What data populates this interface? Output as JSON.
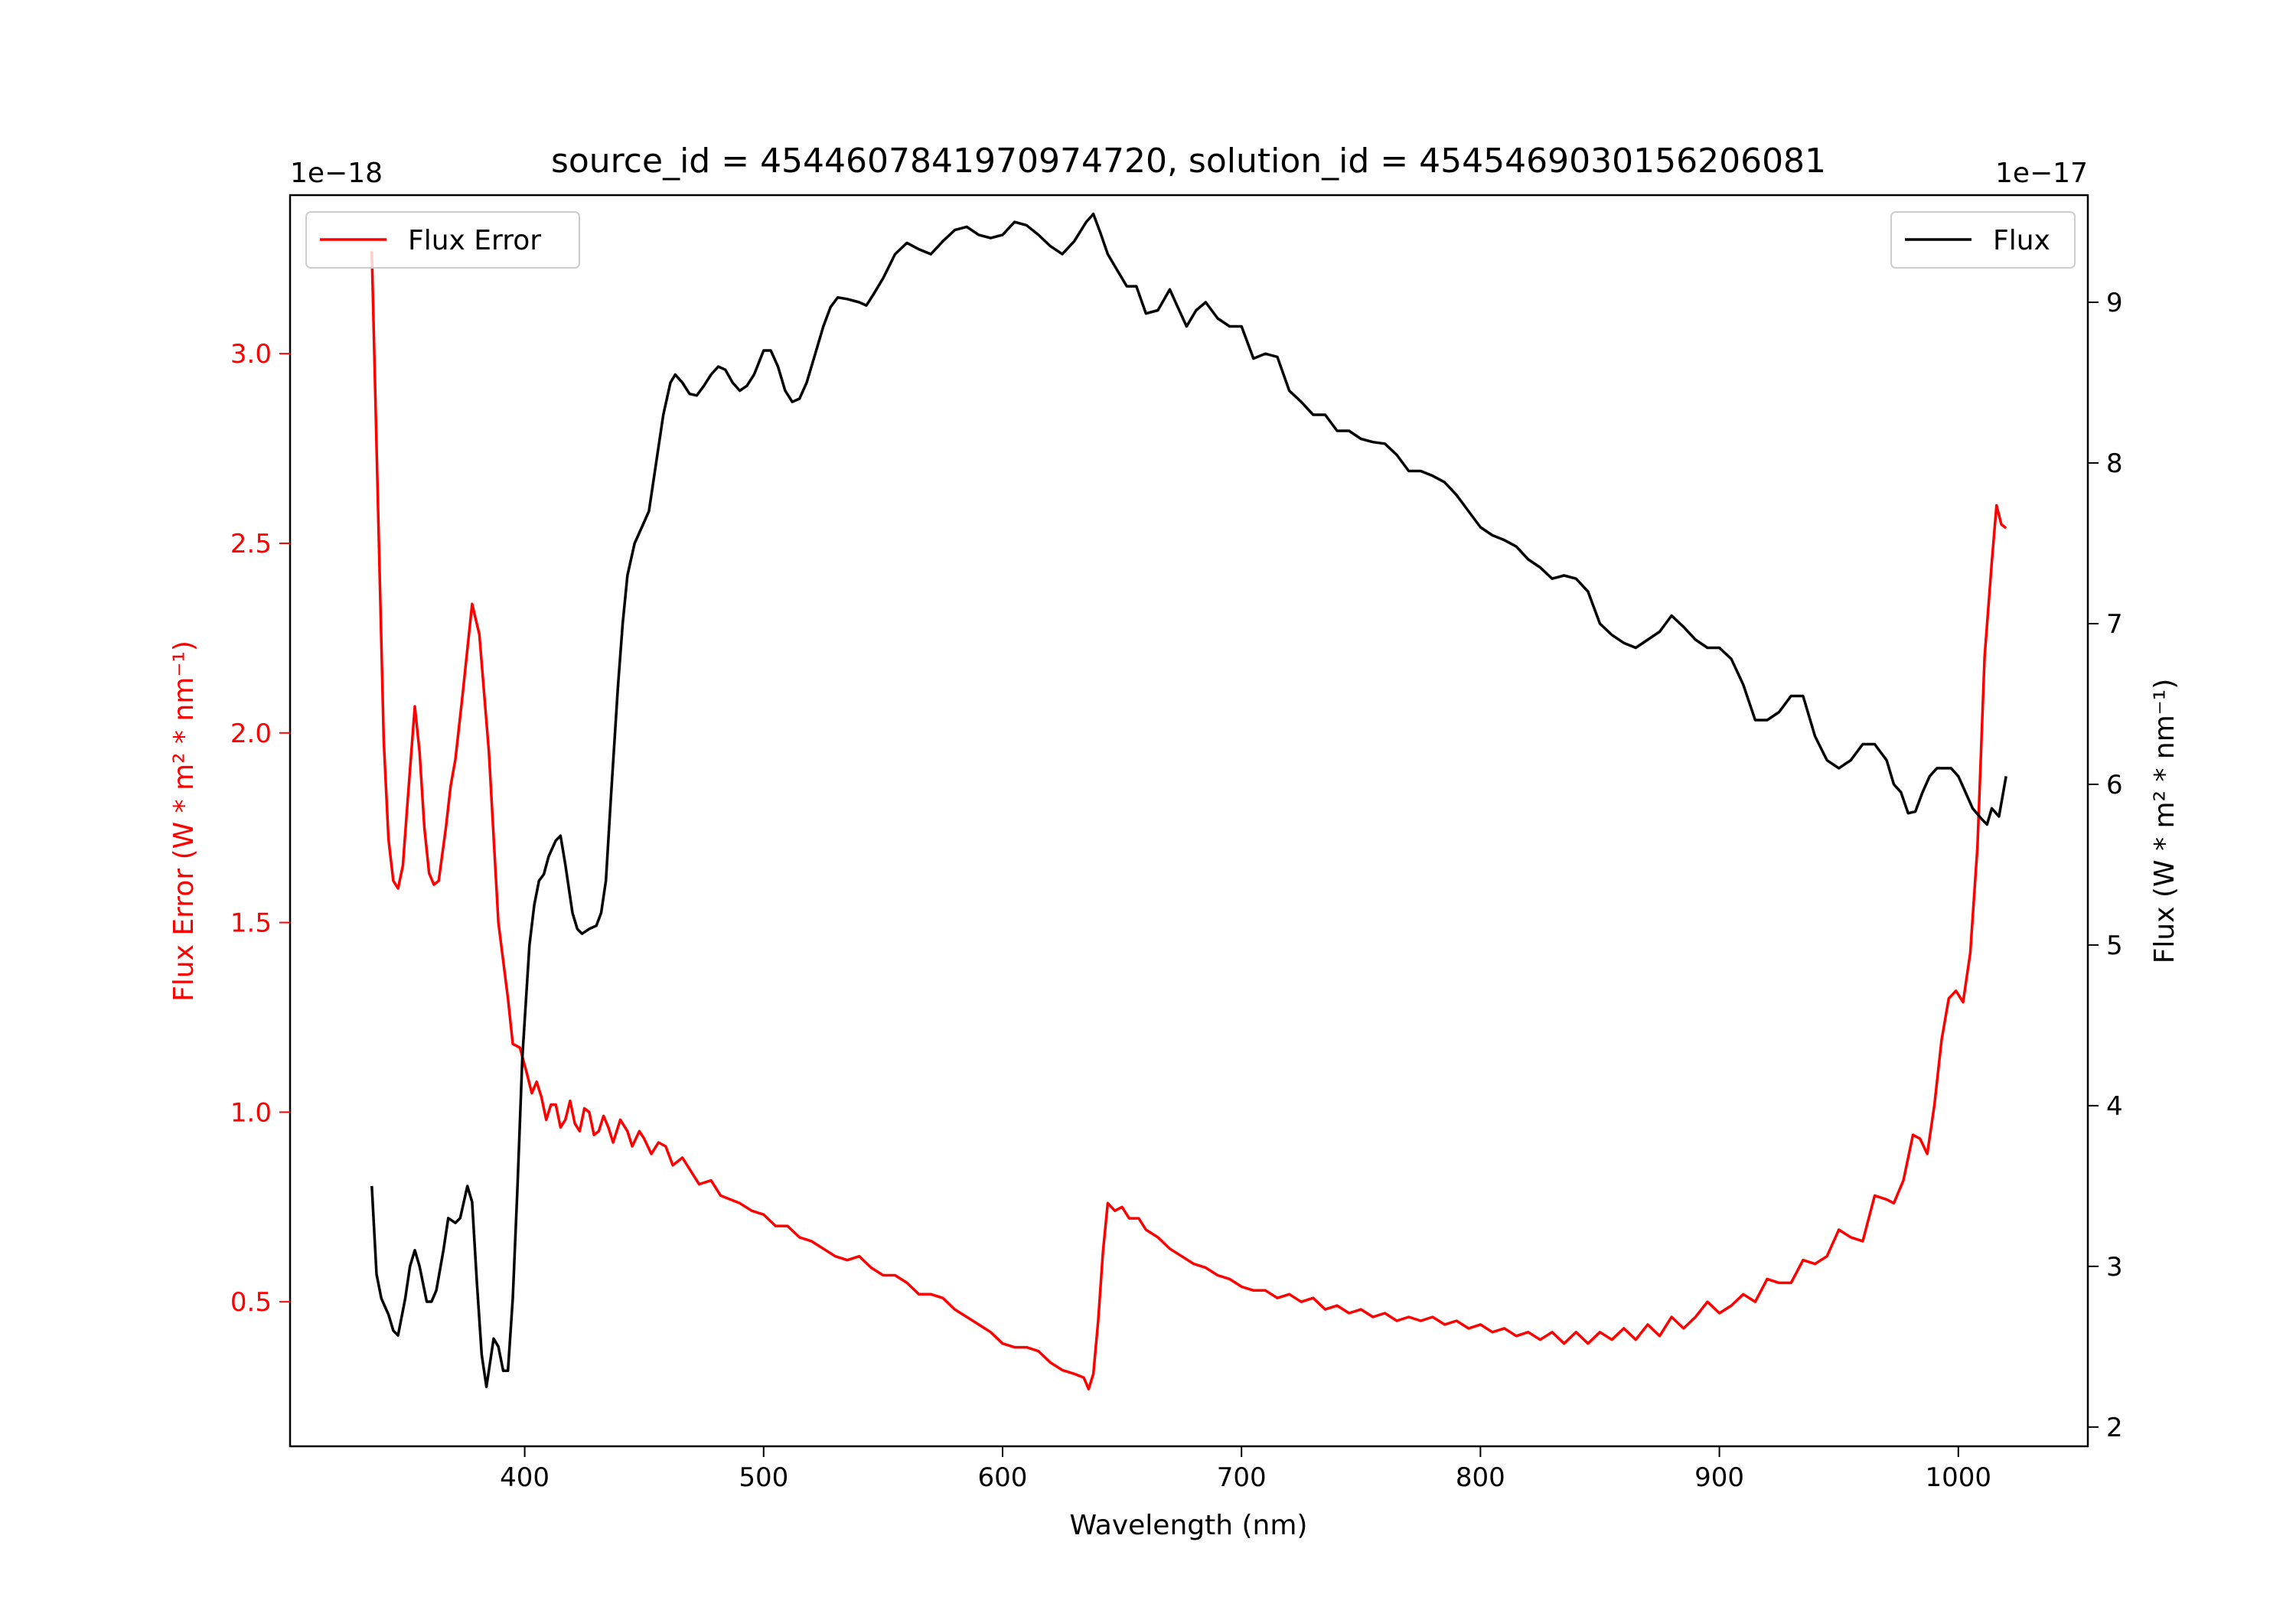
{
  "chart_data": {
    "type": "line",
    "title": "source_id = 4544607841970974720, solution_id = 4545469030156206081",
    "xlabel": "Wavelength (nm)",
    "ylabel_left": "Flux Error (W * m$^2$ * nm$^{-1}$)",
    "ylabel_left_text": "Flux Error (W * m² * nm⁻¹)",
    "ylabel_right_text": "Flux (W * m² * nm⁻¹)",
    "offset_left": "1e−18",
    "offset_right": "1e−17",
    "xlim": [
      301.8,
      1054.2
    ],
    "ylim_left": [
      0.119,
      3.418
    ],
    "ylim_right": [
      1.88,
      9.667
    ],
    "xticks": [
      400,
      500,
      600,
      700,
      800,
      900,
      1000
    ],
    "yticks_left": [
      "0.5",
      "1.0",
      "1.5",
      "2.0",
      "2.5",
      "3.0"
    ],
    "yticks_right": [
      "2",
      "3",
      "4",
      "5",
      "6",
      "7",
      "8",
      "9"
    ],
    "grid": false,
    "legend_left": {
      "label": "Flux Error",
      "placement": "upper-left"
    },
    "legend_right": {
      "label": "Flux",
      "placement": "upper-right"
    },
    "series": [
      {
        "name": "Flux Error",
        "axis": "left",
        "color": "#ff0000",
        "x": [
          336,
          339,
          341,
          343,
          345,
          347,
          349,
          351,
          354,
          356,
          358,
          360,
          362,
          364,
          367,
          369,
          371,
          374,
          378,
          381,
          385,
          389,
          393,
          395,
          398,
          401,
          403,
          405,
          407,
          409,
          411,
          413,
          415,
          417,
          419,
          421,
          423,
          425,
          427,
          429,
          431,
          433,
          435,
          437,
          440,
          443,
          445,
          448,
          450,
          453,
          456,
          459,
          462,
          466,
          470,
          473,
          478,
          482,
          486,
          490,
          495,
          500,
          505,
          510,
          515,
          520,
          525,
          530,
          535,
          540,
          545,
          550,
          555,
          560,
          565,
          570,
          575,
          580,
          585,
          590,
          595,
          600,
          605,
          610,
          615,
          620,
          625,
          630,
          634,
          636,
          638,
          640,
          642,
          644,
          647,
          650,
          653,
          657,
          660,
          665,
          670,
          675,
          680,
          685,
          690,
          695,
          700,
          705,
          710,
          715,
          720,
          725,
          730,
          735,
          740,
          745,
          750,
          755,
          760,
          765,
          770,
          775,
          780,
          785,
          790,
          795,
          800,
          805,
          810,
          815,
          820,
          825,
          830,
          835,
          840,
          845,
          850,
          855,
          860,
          865,
          870,
          875,
          880,
          885,
          890,
          895,
          900,
          905,
          910,
          915,
          920,
          925,
          930,
          935,
          940,
          945,
          950,
          955,
          960,
          965,
          970,
          973,
          977,
          981,
          984,
          987,
          990,
          993,
          996,
          999,
          1002,
          1005,
          1008,
          1011,
          1014,
          1016,
          1018,
          1020
        ],
        "y": [
          3.27,
          2.5,
          1.98,
          1.72,
          1.61,
          1.59,
          1.65,
          1.82,
          2.07,
          1.95,
          1.75,
          1.63,
          1.6,
          1.61,
          1.75,
          1.86,
          1.93,
          2.1,
          2.34,
          2.26,
          1.95,
          1.5,
          1.3,
          1.18,
          1.17,
          1.1,
          1.05,
          1.08,
          1.04,
          0.98,
          1.02,
          1.02,
          0.96,
          0.98,
          1.03,
          0.97,
          0.95,
          1.01,
          1.0,
          0.94,
          0.95,
          0.99,
          0.96,
          0.92,
          0.98,
          0.95,
          0.91,
          0.95,
          0.93,
          0.89,
          0.92,
          0.91,
          0.86,
          0.88,
          0.84,
          0.81,
          0.82,
          0.78,
          0.77,
          0.76,
          0.74,
          0.73,
          0.7,
          0.7,
          0.67,
          0.66,
          0.64,
          0.62,
          0.61,
          0.62,
          0.59,
          0.57,
          0.57,
          0.55,
          0.52,
          0.52,
          0.51,
          0.48,
          0.46,
          0.44,
          0.42,
          0.39,
          0.38,
          0.38,
          0.37,
          0.34,
          0.32,
          0.31,
          0.3,
          0.27,
          0.31,
          0.45,
          0.63,
          0.76,
          0.74,
          0.75,
          0.72,
          0.72,
          0.69,
          0.67,
          0.64,
          0.62,
          0.6,
          0.59,
          0.57,
          0.56,
          0.54,
          0.53,
          0.53,
          0.51,
          0.52,
          0.5,
          0.51,
          0.48,
          0.49,
          0.47,
          0.48,
          0.46,
          0.47,
          0.45,
          0.46,
          0.45,
          0.46,
          0.44,
          0.45,
          0.43,
          0.44,
          0.42,
          0.43,
          0.41,
          0.42,
          0.4,
          0.42,
          0.39,
          0.42,
          0.39,
          0.42,
          0.4,
          0.43,
          0.4,
          0.44,
          0.41,
          0.46,
          0.43,
          0.46,
          0.5,
          0.47,
          0.49,
          0.52,
          0.5,
          0.56,
          0.55,
          0.55,
          0.61,
          0.6,
          0.62,
          0.69,
          0.67,
          0.66,
          0.78,
          0.77,
          0.76,
          0.82,
          0.94,
          0.93,
          0.89,
          1.02,
          1.19,
          1.3,
          1.32,
          1.29,
          1.42,
          1.7,
          2.2,
          2.45,
          2.6,
          2.55,
          2.54
        ]
      },
      {
        "name": "Flux",
        "axis": "right",
        "color": "#000000",
        "x": [
          336,
          338,
          340,
          343,
          345,
          347,
          350,
          352,
          354,
          356,
          359,
          361,
          363,
          366,
          368,
          371,
          373,
          376,
          378,
          380,
          382,
          384,
          387,
          389,
          391,
          393,
          395,
          397,
          399,
          402,
          404,
          406,
          408,
          410,
          413,
          415,
          417,
          420,
          422,
          424,
          427,
          430,
          432,
          434,
          436,
          439,
          441,
          443,
          446,
          449,
          452,
          455,
          458,
          461,
          463,
          466,
          469,
          472,
          475,
          478,
          481,
          484,
          487,
          490,
          493,
          496,
          500,
          503,
          506,
          509,
          512,
          515,
          518,
          522,
          525,
          528,
          531,
          535,
          540,
          543,
          546,
          550,
          555,
          560,
          565,
          570,
          575,
          580,
          585,
          590,
          595,
          600,
          605,
          610,
          615,
          620,
          625,
          630,
          635,
          638,
          641,
          644,
          648,
          652,
          656,
          660,
          665,
          670,
          673,
          677,
          681,
          685,
          690,
          695,
          700,
          705,
          710,
          715,
          720,
          725,
          730,
          735,
          740,
          745,
          750,
          755,
          760,
          765,
          770,
          775,
          780,
          785,
          790,
          795,
          800,
          805,
          810,
          815,
          820,
          825,
          830,
          835,
          840,
          845,
          850,
          855,
          860,
          865,
          870,
          875,
          880,
          885,
          890,
          895,
          900,
          905,
          910,
          915,
          920,
          925,
          930,
          935,
          940,
          945,
          950,
          955,
          960,
          965,
          970,
          973,
          976,
          979,
          982,
          985,
          988,
          991,
          994,
          997,
          1000,
          1003,
          1006,
          1010,
          1012,
          1014,
          1017,
          1020
        ],
        "y": [
          3.5,
          2.95,
          2.8,
          2.7,
          2.6,
          2.57,
          2.8,
          3.0,
          3.1,
          3.0,
          2.78,
          2.78,
          2.85,
          3.1,
          3.3,
          3.27,
          3.3,
          3.5,
          3.4,
          2.9,
          2.45,
          2.25,
          2.55,
          2.5,
          2.35,
          2.35,
          2.8,
          3.5,
          4.3,
          5.0,
          5.25,
          5.4,
          5.44,
          5.55,
          5.65,
          5.68,
          5.5,
          5.2,
          5.1,
          5.07,
          5.1,
          5.12,
          5.2,
          5.4,
          5.9,
          6.6,
          7.0,
          7.3,
          7.5,
          7.6,
          7.7,
          8.0,
          8.3,
          8.5,
          8.55,
          8.5,
          8.43,
          8.42,
          8.48,
          8.55,
          8.6,
          8.58,
          8.5,
          8.45,
          8.48,
          8.55,
          8.7,
          8.7,
          8.6,
          8.45,
          8.38,
          8.4,
          8.5,
          8.7,
          8.85,
          8.97,
          9.03,
          9.02,
          9.0,
          8.98,
          9.05,
          9.15,
          9.3,
          9.37,
          9.33,
          9.3,
          9.38,
          9.45,
          9.47,
          9.42,
          9.4,
          9.42,
          9.5,
          9.48,
          9.42,
          9.35,
          9.3,
          9.38,
          9.5,
          9.55,
          9.43,
          9.3,
          9.2,
          9.1,
          9.1,
          8.93,
          8.95,
          9.08,
          8.98,
          8.85,
          8.95,
          9.0,
          8.9,
          8.85,
          8.85,
          8.65,
          8.68,
          8.66,
          8.45,
          8.38,
          8.3,
          8.3,
          8.2,
          8.2,
          8.15,
          8.13,
          8.12,
          8.05,
          7.95,
          7.95,
          7.92,
          7.88,
          7.8,
          7.7,
          7.6,
          7.55,
          7.52,
          7.48,
          7.4,
          7.35,
          7.28,
          7.3,
          7.28,
          7.2,
          7.0,
          6.93,
          6.88,
          6.85,
          6.9,
          6.95,
          7.05,
          6.98,
          6.9,
          6.85,
          6.85,
          6.78,
          6.62,
          6.4,
          6.4,
          6.45,
          6.55,
          6.55,
          6.3,
          6.15,
          6.1,
          6.15,
          6.25,
          6.25,
          6.15,
          6.0,
          5.95,
          5.82,
          5.83,
          5.95,
          6.05,
          6.1,
          6.1,
          6.1,
          6.05,
          5.95,
          5.85,
          5.78,
          5.75,
          5.85,
          5.8,
          6.05
        ]
      }
    ]
  }
}
